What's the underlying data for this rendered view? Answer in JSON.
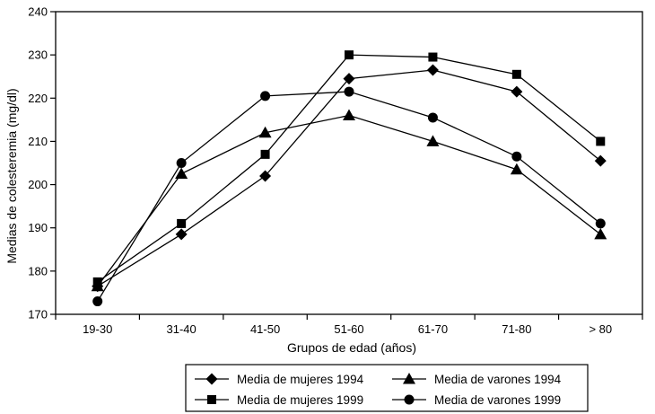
{
  "chart_data": {
    "type": "line",
    "title": "",
    "xlabel": "Grupos de edad (años)",
    "ylabel": "Medias de colesteremia (mg/dl)",
    "categories": [
      "19-30",
      "31-40",
      "41-50",
      "51-60",
      "61-70",
      "71-80",
      "> 80"
    ],
    "ylim": [
      170,
      240
    ],
    "yticks": [
      170,
      180,
      190,
      200,
      210,
      220,
      230,
      240
    ],
    "grid": false,
    "legend_position": "bottom",
    "series": [
      {
        "name": "Media de mujeres 1994",
        "marker": "diamond",
        "values": [
          176.5,
          188.5,
          202,
          224.5,
          226.5,
          221.5,
          205.5
        ]
      },
      {
        "name": "Media de varones 1994",
        "marker": "triangle",
        "values": [
          176.5,
          202.5,
          212,
          216,
          210,
          203.5,
          188.5
        ]
      },
      {
        "name": "Media de mujeres 1999",
        "marker": "square",
        "values": [
          177.5,
          191,
          207,
          230,
          229.5,
          225.5,
          210
        ]
      },
      {
        "name": "Media de varones 1999",
        "marker": "circle",
        "values": [
          173,
          205,
          220.5,
          221.5,
          215.5,
          206.5,
          191
        ]
      }
    ],
    "legend_order": [
      0,
      1,
      2,
      3
    ],
    "colors": {
      "line": "#000000",
      "marker": "#000000",
      "axis": "#000000"
    }
  }
}
